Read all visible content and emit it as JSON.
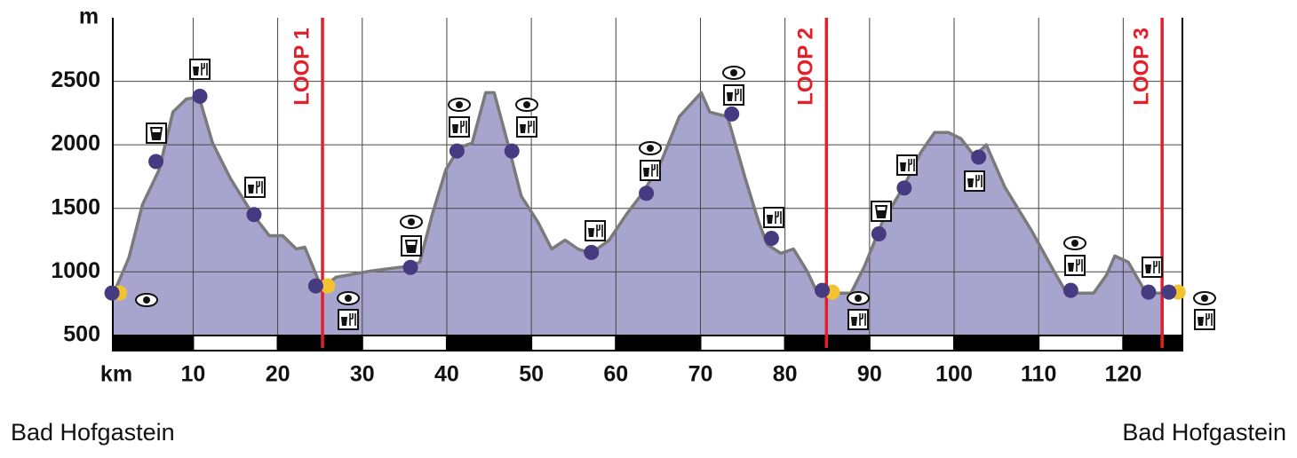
{
  "chart_data": {
    "type": "area",
    "y_label": "m",
    "x_label": "km",
    "x": [
      0.6,
      2.4,
      4,
      6,
      7.6,
      9.2,
      10.7,
      12.3,
      14.4,
      17,
      19,
      20.6,
      22.2,
      23.2,
      24.8,
      25.6,
      26.9,
      31,
      35.2,
      36.8,
      38.3,
      39.9,
      41.5,
      43,
      44.6,
      45.6,
      47.2,
      48.8,
      50.8,
      52.4,
      54,
      55.5,
      57.1,
      59.2,
      61.3,
      63.3,
      65.4,
      67.5,
      70.1,
      71.1,
      73.2,
      75.3,
      76.9,
      77.9,
      79.5,
      81,
      82.6,
      83.6,
      85.2,
      87.8,
      89.4,
      91.5,
      94,
      96.1,
      97.7,
      99.3,
      100.8,
      102.4,
      103.8,
      106,
      109.2,
      111.8,
      113.3,
      116.5,
      118,
      119,
      120.6,
      122.7,
      124.8
    ],
    "values": [
      833,
      1111,
      1528,
      1806,
      2257,
      2361,
      2375,
      2014,
      1736,
      1458,
      1285,
      1285,
      1180,
      1194,
      937,
      889,
      958,
      1007,
      1042,
      1076,
      1458,
      1806,
      1979,
      2014,
      2410,
      2410,
      2014,
      1597,
      1389,
      1180,
      1250,
      1180,
      1146,
      1250,
      1458,
      1632,
      1875,
      2222,
      2410,
      2257,
      2222,
      1736,
      1389,
      1215,
      1146,
      1180,
      1007,
      868,
      833,
      833,
      1042,
      1389,
      1667,
      1944,
      2097,
      2097,
      2049,
      1910,
      2000,
      1667,
      1319,
      1007,
      833,
      833,
      972,
      1125,
      1076,
      833,
      833
    ],
    "color": "#a7a4cd",
    "line_color": "#7a7a7a",
    "points": [
      {
        "color": "#463a80",
        "x": [
          0.4,
          5.6,
          10.8,
          17.2,
          24.5,
          35.7,
          41.2,
          47.7,
          57.1,
          63.6,
          73.7,
          78.4,
          84.4,
          91.1,
          94.1,
          102.9,
          113.8,
          123.0,
          125.4
        ],
        "values": [
          833,
          1868,
          2382,
          1451,
          889,
          1035,
          1951,
          1951,
          1153,
          1618,
          2243,
          1264,
          854,
          1299,
          1660,
          1903,
          854,
          840,
          840
        ]
      },
      {
        "color": "#f2c230",
        "x": [
          1.3,
          25.9,
          85.6,
          126.5
        ],
        "values": [
          833,
          889,
          840,
          840
        ]
      }
    ],
    "loops": [
      {
        "label": "LOOP 1",
        "x": 25.3
      },
      {
        "label": "LOOP 2",
        "x": 84.9
      },
      {
        "label": "LOOP 3",
        "x": 124.6
      }
    ],
    "loop_color": "#e3202a",
    "xlim": [
      0.5,
      127
    ],
    "ylim": [
      380,
      3000
    ],
    "xticks": [
      10,
      20,
      30,
      40,
      50,
      60,
      70,
      80,
      90,
      100,
      110,
      120
    ],
    "yticks": [
      500,
      1000,
      1500,
      2000,
      2500
    ],
    "grid": true,
    "start_label": "Bad Hofgastein",
    "end_label": "Bad Hofgastein"
  }
}
